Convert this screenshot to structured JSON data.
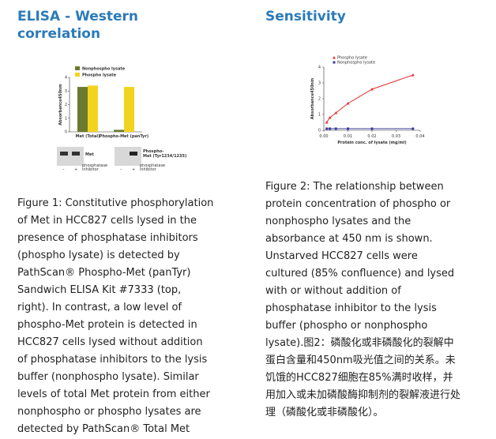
{
  "left": {
    "title": [
      "ELISA - Western",
      "correlation"
    ],
    "blots": {
      "met": "Met",
      "phospho_met": [
        "Phospho-",
        "Met (Tyr1234/1235)"
      ],
      "minus": "–",
      "plus": "+",
      "inhibitor": [
        "phosphatase",
        "inhibitor"
      ]
    },
    "caption": [
      "Figure 1: Constitutive phosphorylation",
      "of Met in HCC827 cells lysed in the",
      "presence of phosphatase inhibitors",
      "(phospho lysate) is detected by",
      "PathScan® Phospho-Met (panTyr)",
      "Sandwich ELISA Kit #7333 (top,",
      "right). In contrast, a low level of",
      "phospho-Met protein is detected in",
      "HCC827 cells lysed without addition",
      "of phosphatase inhibitors to the lysis",
      "buffer (nonphospho lysate). Similar",
      "levels of total Met protein from either",
      "nonphospho or phospho lysates are",
      "detected by PathScan® Total Met"
    ]
  },
  "right": {
    "title": "Sensitivity",
    "caption": [
      "Figure 2: The relationship between",
      "protein concentration of phospho or",
      "nonphospho lysates and the",
      "absorbance at 450 nm is shown.",
      "Unstarved HCC827 cells were",
      "cultured (85% confluence) and lysed",
      "with or without addition of",
      "phosphatase inhibitor to the lysis",
      "buffer (phospho or nonphospho",
      "lysate).图2：磷酸化或非磷酸化的裂解中",
      "蛋白含量和450nm吸光值之间的关系。未",
      "饥饿的HCC827细胞在85%满时收样，并",
      "用加入或未加磷酸酶抑制剂的裂解液进行处",
      "理（磷酸化或非磷酸化）。"
    ]
  },
  "chart_data": [
    {
      "type": "bar",
      "y_label": "Absorbance450nm",
      "categories": [
        "Met (Total)",
        "Phospho-Met (panTyr)"
      ],
      "series": [
        {
          "name": "Nonphospho lysate",
          "color": "#6b7a2e",
          "values": [
            3.3,
            0.15
          ]
        },
        {
          "name": "Phospho lysate",
          "color": "#f2d41e",
          "values": [
            3.4,
            3.3
          ]
        }
      ],
      "ylim": [
        0,
        4
      ],
      "yticks": [
        0,
        1,
        2,
        3,
        4
      ]
    },
    {
      "type": "line",
      "x_label": "Protein conc. of lysate (mg/ml)",
      "y_label": "Absorbance450nm",
      "x": [
        0.0012,
        0.0025,
        0.005,
        0.01,
        0.02,
        0.037
      ],
      "series": [
        {
          "name": "Phospho lysate",
          "color": "#e03030",
          "values": [
            0.5,
            0.8,
            1.1,
            1.7,
            2.6,
            3.5
          ]
        },
        {
          "name": "Nonphospho lysate",
          "color": "#3a3a9a",
          "values": [
            0.1,
            0.1,
            0.1,
            0.1,
            0.1,
            0.1
          ]
        }
      ],
      "xlim": [
        0,
        0.04
      ],
      "xticks": [
        {
          "value": 0,
          "label": "0.00"
        },
        {
          "value": 0.01,
          "label": "0.01"
        },
        {
          "value": 0.02,
          "label": "0.02"
        },
        {
          "value": 0.03,
          "label": "0.03"
        },
        {
          "value": 0.04,
          "label": "0.04"
        }
      ],
      "ylim": [
        0,
        4
      ],
      "yticks": [
        0,
        1,
        2,
        3,
        4
      ]
    }
  ]
}
